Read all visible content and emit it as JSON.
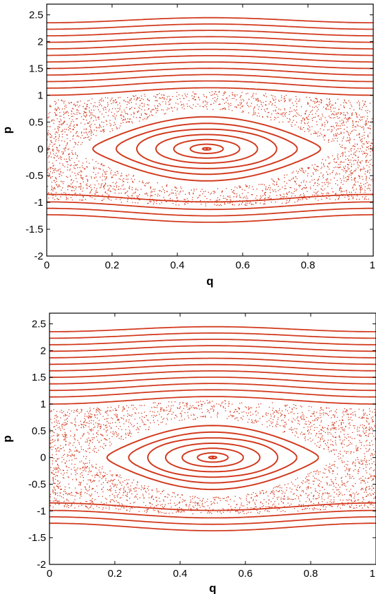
{
  "chart_data": [
    {
      "type": "scatter",
      "title": "",
      "xlabel": "q",
      "ylabel": "p",
      "xlim": [
        0,
        1
      ],
      "ylim": [
        -2,
        2.7
      ],
      "xticks": [
        0,
        0.2,
        0.4,
        0.6,
        0.8,
        1
      ],
      "xtick_labels": [
        "0",
        "0.2",
        "0.4",
        "0.6",
        "0.8",
        "1"
      ],
      "yticks": [
        -2,
        -1.5,
        -1,
        -0.5,
        0,
        0.5,
        1,
        1.5,
        2,
        2.5
      ],
      "ytick_labels": [
        "-2",
        "-1.5",
        "-1",
        "-0.5",
        "0",
        "0.5",
        "1",
        "1.5",
        "2",
        "2.5"
      ],
      "grid": false,
      "color": "#d23a1e",
      "island": {
        "center_q": 0.49,
        "center_p": 0.0,
        "half_width_q": 0.42,
        "half_height_p": 0.72
      },
      "orbit_fractions": [
        0.03,
        0.12,
        0.24,
        0.37,
        0.51,
        0.66,
        0.83
      ],
      "rotational_curves_upper": [
        1.07,
        1.2,
        1.32,
        1.44,
        1.56,
        1.68,
        1.8,
        1.92,
        2.04,
        2.16,
        2.28,
        2.4
      ],
      "rotational_curves_lower": [
        -0.92,
        -1.06,
        -1.18,
        -1.3
      ],
      "chaos_band": {
        "upper": 1.0,
        "lower": -1.0
      }
    },
    {
      "type": "scatter",
      "title": "",
      "xlabel": "q",
      "ylabel": "p",
      "xlim": [
        0,
        1
      ],
      "ylim": [
        -2,
        2.7
      ],
      "xticks": [
        0,
        0.2,
        0.4,
        0.6,
        0.8,
        1
      ],
      "xtick_labels": [
        "0",
        "0.2",
        "0.4",
        "0.6",
        "0.8",
        "1"
      ],
      "yticks": [
        -2,
        -1.5,
        -1,
        -0.5,
        0,
        0.5,
        1,
        1.5,
        2,
        2.5
      ],
      "ytick_labels": [
        "-2",
        "-1.5",
        "-1",
        "-0.5",
        "0",
        "0.5",
        "1",
        "1.5",
        "2",
        "2.5"
      ],
      "grid": false,
      "color": "#d23a1e",
      "island": {
        "center_q": 0.5,
        "center_p": 0.0,
        "half_width_q": 0.39,
        "half_height_p": 0.72
      },
      "orbit_fractions": [
        0.03,
        0.12,
        0.24,
        0.37,
        0.51,
        0.66,
        0.83
      ],
      "rotational_curves_upper": [
        1.07,
        1.2,
        1.32,
        1.44,
        1.56,
        1.68,
        1.8,
        1.92,
        2.04,
        2.16,
        2.28,
        2.4
      ],
      "rotational_curves_lower": [
        -0.92,
        -1.06,
        -1.18,
        -1.3
      ],
      "chaos_band": {
        "upper": 1.0,
        "lower": -1.0
      }
    }
  ]
}
